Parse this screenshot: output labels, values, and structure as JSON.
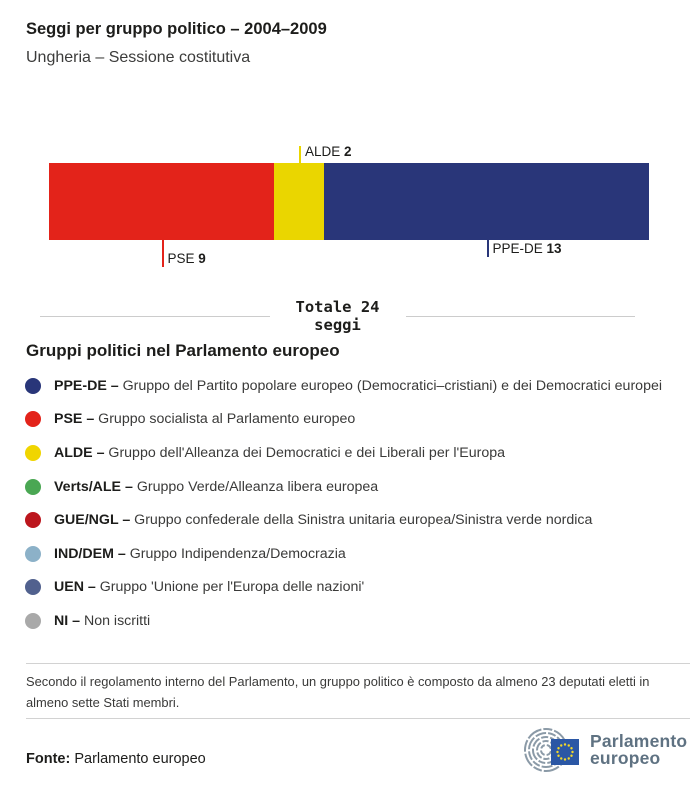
{
  "header": {
    "title": "Seggi per gruppo politico – 2004–2009",
    "subtitle": "Ungheria – Sessione costitutiva"
  },
  "chart_data": {
    "type": "bar",
    "stacked": true,
    "orientation": "horizontal",
    "title": "Seggi per gruppo politico – 2004–2009",
    "country": "Ungheria",
    "session": "Sessione costitutiva",
    "total": 24,
    "segments": [
      {
        "name": "PSE",
        "value": 9,
        "color": "#e3231a",
        "label_position": "below"
      },
      {
        "name": "ALDE",
        "value": 2,
        "color": "#ead600",
        "label_position": "above"
      },
      {
        "name": "PPE-DE",
        "value": 13,
        "color": "#293679",
        "label_position": "below"
      }
    ]
  },
  "totale": {
    "line1": "Totale 24",
    "line2": "seggi"
  },
  "legend": {
    "heading": "Gruppi politici nel Parlamento europeo",
    "separator": " – ",
    "items": [
      {
        "name": "PPE-DE",
        "color": "#293679",
        "description": "Gruppo del Partito popolare europeo (Democratici–cristiani) e dei Democratici europei"
      },
      {
        "name": "PSE",
        "color": "#e3231a",
        "description": "Gruppo socialista al Parlamento europeo"
      },
      {
        "name": "ALDE",
        "color": "#f0d500",
        "description": "Gruppo dell'Alleanza dei Democratici e dei Liberali per l'Europa"
      },
      {
        "name": "Verts/ALE",
        "color": "#4aa753",
        "description": "Gruppo Verde/Alleanza libera europea"
      },
      {
        "name": "GUE/NGL",
        "color": "#bc161d",
        "description": "Gruppo confederale della Sinistra unitaria europea/Sinistra verde nordica"
      },
      {
        "name": "IND/DEM",
        "color": "#8cb1c8",
        "description": "Gruppo Indipendenza/Democrazia"
      },
      {
        "name": "UEN",
        "color": "#51618e",
        "description": "Gruppo 'Unione per l'Europa delle nazioni'"
      },
      {
        "name": "NI",
        "color": "#a9a9a9",
        "description": "Non iscritti"
      }
    ]
  },
  "footnote": "Secondo il regolamento interno del Parlamento, un gruppo politico è composto da almeno 23 deputati eletti in almeno sette Stati membri.",
  "footer": {
    "source_label": "Fonte:",
    "source_value": "Parlamento europeo",
    "logo_line1": "Parlamento",
    "logo_line2": "europeo"
  },
  "colors": {
    "divider": "#d2d2d2",
    "logo_slate": "#5f7282",
    "logo_swirl": "#8b9aa7",
    "eu_flag_blue": "#2b57a5",
    "eu_star_yellow": "#f5d928"
  }
}
